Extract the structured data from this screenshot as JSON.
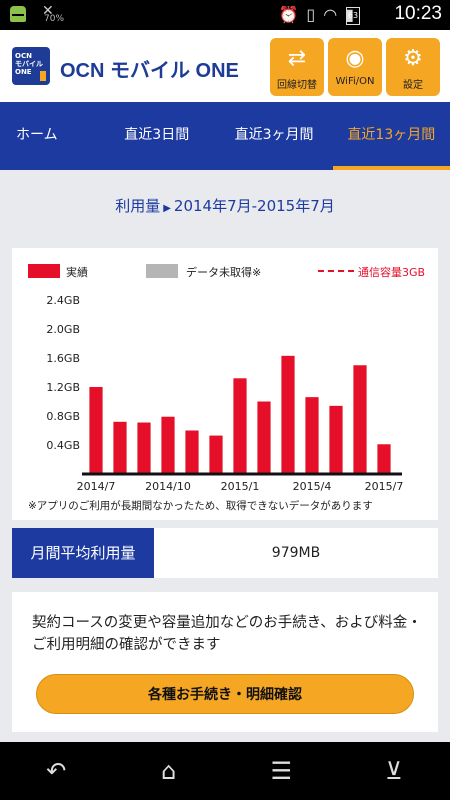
{
  "status_bar": {
    "time": "10:23",
    "battery": "63",
    "signal_pct": "70%"
  },
  "header": {
    "logo_line1": "OCN",
    "logo_line2": "モバイル",
    "logo_line3": "ONE",
    "title": "OCN モバイル ONE",
    "buttons": [
      {
        "label": "回線切替",
        "icon": "line-switch-icon"
      },
      {
        "label": "WiFi/ON",
        "icon": "wifi-icon"
      },
      {
        "label": "設定",
        "icon": "gear-icon"
      }
    ]
  },
  "nav": {
    "tabs": [
      {
        "label": "ホーム"
      },
      {
        "label": "直近3日間"
      },
      {
        "label": "直近3ヶ月間"
      },
      {
        "label": "直近13ヶ月間",
        "active": true
      }
    ]
  },
  "range": {
    "prefix": "利用量",
    "period": "2014年7月-2015年7月"
  },
  "legend": {
    "actual": "実績",
    "no_data": "データ未取得※",
    "limit": "通信容量3GB"
  },
  "chart_data": {
    "type": "bar",
    "categories": [
      "2014/7",
      "2014/8",
      "2014/9",
      "2014/10",
      "2014/11",
      "2014/12",
      "2015/1",
      "2015/2",
      "2015/3",
      "2015/4",
      "2015/5",
      "2015/6",
      "2015/7"
    ],
    "values": [
      1.2,
      0.72,
      0.71,
      0.79,
      0.6,
      0.53,
      1.32,
      1.0,
      1.63,
      1.06,
      0.94,
      1.5,
      0.41
    ],
    "y_unit": "GB",
    "ylim": [
      0,
      2.4
    ],
    "yticks": [
      "0.4GB",
      "0.8GB",
      "1.2GB",
      "1.6GB",
      "2.0GB",
      "2.4GB"
    ],
    "xtick_labels": [
      "2014/7",
      "2014/10",
      "2015/1",
      "2015/4",
      "2015/7"
    ],
    "bar_color": "#e50f2a"
  },
  "note": "※アプリのご利用が長期間なかったため、取得できないデータがあります",
  "average": {
    "label": "月間平均利用量",
    "value": "979MB"
  },
  "info": {
    "text": "契約コースの変更や容量追加などのお手続き、および料金・ご利用明細の確認ができます",
    "button": "各種お手続き・明細確認"
  },
  "colors": {
    "brand_blue": "#1c3aa0",
    "accent_orange": "#f5a623",
    "bar_red": "#e50f2a"
  }
}
